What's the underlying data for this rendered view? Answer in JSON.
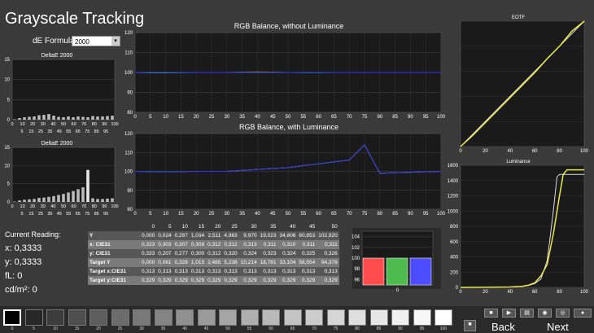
{
  "title": "Grayscale Tracking",
  "de_formula": {
    "label": "dE Formula:",
    "value": "2000"
  },
  "deltaE_top": {
    "title": "DeltaE 2000",
    "yticks": [
      "0",
      "5",
      "10",
      "15"
    ],
    "xticks": [
      "0",
      "10",
      "20",
      "30",
      "40",
      "50",
      "60",
      "70",
      "80",
      "90",
      "100"
    ],
    "xticks2": [
      "5",
      "15",
      "25",
      "35",
      "45",
      "55",
      "65",
      "75",
      "85",
      "95"
    ],
    "values": [
      0.1,
      0.4,
      0.6,
      0.7,
      0.8,
      1.1,
      1.2,
      1.4,
      1.0,
      0.7,
      0.6,
      0.8,
      0.6,
      0.8,
      0.7,
      0.6,
      0.9,
      0.8,
      0.8,
      0.9,
      1.0
    ]
  },
  "deltaE_bottom": {
    "title": "DeltaE 2000",
    "yticks": [
      "0",
      "5",
      "10",
      "15"
    ],
    "xticks": [
      "0",
      "10",
      "20",
      "30",
      "40",
      "50",
      "60",
      "70",
      "80",
      "90",
      "100"
    ],
    "xticks2": [
      "5",
      "15",
      "25",
      "35",
      "45",
      "55",
      "65",
      "75",
      "85",
      "95"
    ],
    "values": [
      0.1,
      0.4,
      0.6,
      0.7,
      0.8,
      1.1,
      1.2,
      1.4,
      1.6,
      1.9,
      2.2,
      2.6,
      3.0,
      3.5,
      4.0,
      8.8,
      1.0,
      0.8,
      0.8,
      0.9,
      1.0
    ]
  },
  "rgb_no_lum": {
    "title": "RGB Balance, without Luminance",
    "yticks": [
      "80",
      "90",
      "100",
      "110",
      "120"
    ],
    "xticks": [
      "0",
      "5",
      "10",
      "15",
      "20",
      "25",
      "30",
      "35",
      "40",
      "45",
      "50",
      "55",
      "60",
      "65",
      "70",
      "75",
      "80",
      "85",
      "90",
      "95",
      "100"
    ],
    "ylim": [
      80,
      120
    ],
    "series": [
      {
        "color": "#ff3333",
        "values": [
          100,
          100,
          100,
          100,
          100,
          100,
          100,
          100.2,
          100.3,
          100.2,
          100,
          100,
          100,
          100,
          100,
          100,
          100,
          100,
          100,
          100,
          100
        ]
      },
      {
        "color": "#33cc33",
        "values": [
          100,
          99.8,
          99.8,
          99.9,
          100,
          100,
          100,
          100.1,
          100.2,
          100.1,
          100,
          99.9,
          99.9,
          100,
          100,
          100,
          100,
          100,
          100,
          100,
          100
        ]
      },
      {
        "color": "#3333ff",
        "values": [
          100,
          100,
          100,
          100,
          100,
          100,
          100,
          100,
          100,
          100,
          100,
          100,
          100,
          100,
          100,
          100,
          100,
          100,
          100,
          100,
          100
        ]
      }
    ]
  },
  "rgb_lum": {
    "title": "RGB Balance, with Luminance",
    "yticks": [
      "80",
      "90",
      "100",
      "110",
      "120"
    ],
    "xticks": [
      "0",
      "5",
      "10",
      "15",
      "20",
      "25",
      "30",
      "35",
      "40",
      "45",
      "50",
      "55",
      "60",
      "65",
      "70",
      "75",
      "80",
      "85",
      "90",
      "95",
      "100"
    ],
    "ylim": [
      80,
      120
    ],
    "series": [
      {
        "color": "#ff3333",
        "values": [
          100,
          100,
          100,
          100,
          100,
          100,
          100,
          100.5,
          101,
          101.5,
          102,
          103,
          104,
          105,
          106,
          114,
          99,
          99.3,
          99.5,
          99.8,
          100
        ]
      },
      {
        "color": "#33cc33",
        "values": [
          100,
          99.9,
          99.9,
          99.9,
          100,
          100,
          100,
          100.5,
          101,
          101.5,
          102,
          103,
          104,
          105,
          106,
          114,
          99,
          99.3,
          99.5,
          99.8,
          100
        ]
      },
      {
        "color": "#3333ff",
        "values": [
          100,
          100,
          100,
          100,
          100,
          100,
          100,
          100.5,
          101,
          101.5,
          102,
          103,
          104,
          105,
          106,
          114,
          99,
          99.3,
          99.5,
          99.8,
          100
        ]
      }
    ]
  },
  "eotf": {
    "title": "EOTF",
    "xticks": [
      "0",
      "20",
      "40",
      "60",
      "80",
      "100"
    ],
    "ref": [
      [
        0,
        0
      ],
      [
        100,
        100
      ]
    ],
    "measured": [
      [
        0,
        0
      ],
      [
        10,
        9
      ],
      [
        20,
        19
      ],
      [
        30,
        29
      ],
      [
        40,
        39
      ],
      [
        50,
        49
      ],
      [
        60,
        59
      ],
      [
        70,
        70
      ],
      [
        80,
        80
      ],
      [
        90,
        92
      ],
      [
        100,
        100
      ]
    ]
  },
  "luminance": {
    "title": "Luminance",
    "yticks": [
      "0",
      "200",
      "400",
      "600",
      "800",
      "1000",
      "1200",
      "1400",
      "1600"
    ],
    "xticks": [
      "0",
      "20",
      "40",
      "60",
      "80",
      "100"
    ],
    "ylim": [
      0,
      1600
    ],
    "target": [
      [
        0,
        0
      ],
      [
        40,
        5
      ],
      [
        50,
        12
      ],
      [
        55,
        25
      ],
      [
        60,
        50
      ],
      [
        65,
        110
      ],
      [
        70,
        350
      ],
      [
        72,
        600
      ],
      [
        75,
        1000
      ],
      [
        78,
        1450
      ],
      [
        80,
        1480
      ],
      [
        100,
        1480
      ]
    ],
    "measured": [
      [
        0,
        0
      ],
      [
        40,
        6
      ],
      [
        50,
        15
      ],
      [
        55,
        30
      ],
      [
        60,
        60
      ],
      [
        65,
        150
      ],
      [
        70,
        300
      ],
      [
        75,
        700
      ],
      [
        80,
        1200
      ],
      [
        83,
        1480
      ],
      [
        86,
        1540
      ],
      [
        100,
        1540
      ]
    ]
  },
  "current_reading": {
    "heading": "Current Reading:",
    "x": "x: 0,3333",
    "y": "y: 0,3333",
    "fl": "fL: 0",
    "cdm2": "cd/m²: 0"
  },
  "table": {
    "header": [
      "",
      "0",
      "5",
      "10",
      "15",
      "20",
      "25",
      "30",
      "35",
      "40",
      "45",
      "50"
    ],
    "rows": [
      [
        "Y",
        "0,000",
        "0,024",
        "0,297",
        "1,034",
        "2,511",
        "4,983",
        "9,970",
        "19,023",
        "34,806",
        "60,853",
        "102,920"
      ],
      [
        "x: CIE31",
        "0,333",
        "0,303",
        "0,307",
        "0,308",
        "0,312",
        "0,312",
        "0,313",
        "0,311",
        "0,310",
        "0,311",
        "0,311"
      ],
      [
        "y: CIE31",
        "0,333",
        "0,207",
        "0,277",
        "0,300",
        "0,312",
        "0,320",
        "0,324",
        "0,323",
        "0,324",
        "0,325",
        "0,326"
      ],
      [
        "Target Y",
        "0,000",
        "0,061",
        "0,328",
        "1,015",
        "2,465",
        "5,238",
        "10,214",
        "18,781",
        "33,104",
        "56,554",
        "94,378"
      ],
      [
        "Target x:CIE31",
        "0,313",
        "0,313",
        "0,313",
        "0,313",
        "0,313",
        "0,313",
        "0,313",
        "0,313",
        "0,313",
        "0,313",
        "0,313"
      ],
      [
        "Target y:CIE31",
        "0,329",
        "0,329",
        "0,329",
        "0,329",
        "0,329",
        "0,329",
        "0,329",
        "0,329",
        "0,329",
        "0,329",
        "0,329"
      ]
    ]
  },
  "bar_chart": {
    "yticks": [
      "96",
      "98",
      "100",
      "102",
      "104"
    ],
    "xlabel": "0",
    "ylim": [
      95,
      105
    ],
    "values": [
      100,
      100,
      100
    ],
    "colors": [
      "#ff4d4d",
      "#4dbb4d",
      "#4d4dff"
    ]
  },
  "swatches": {
    "labels": [
      "0",
      "5",
      "10",
      "15",
      "20",
      "25",
      "30",
      "35",
      "40",
      "45",
      "50",
      "55",
      "60",
      "65",
      "70",
      "75",
      "80",
      "85",
      "90",
      "95",
      "100"
    ]
  },
  "nav": {
    "back": "Back",
    "next": "Next"
  }
}
